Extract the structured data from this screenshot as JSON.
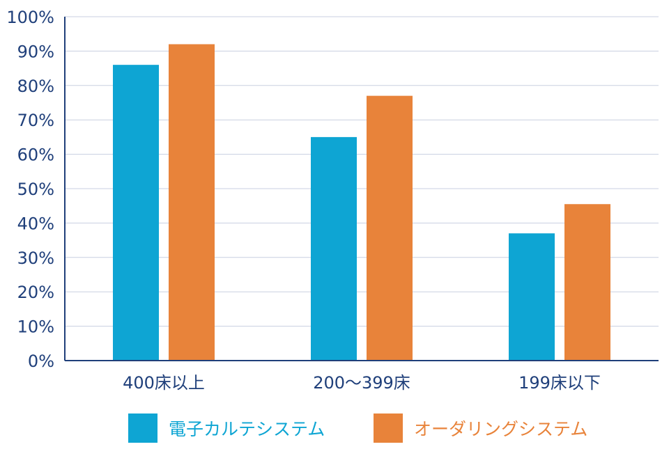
{
  "chart_data": {
    "type": "bar",
    "categories": [
      "400床以上",
      "200～399床",
      "199床以下"
    ],
    "series": [
      {
        "name": "電子カルテシステム",
        "color": "#0ea5d3",
        "values": [
          86,
          65,
          37
        ]
      },
      {
        "name": "オーダリングシステム",
        "color": "#e8833a",
        "values": [
          92,
          77,
          45.5
        ]
      }
    ],
    "ylim": [
      0,
      100
    ],
    "yticks": [
      "0%",
      "10%",
      "20%",
      "30%",
      "40%",
      "50%",
      "60%",
      "70%",
      "80%",
      "90%",
      "100%"
    ],
    "grid": true,
    "legend_position": "bottom",
    "title": "",
    "xlabel": "",
    "ylabel": ""
  }
}
